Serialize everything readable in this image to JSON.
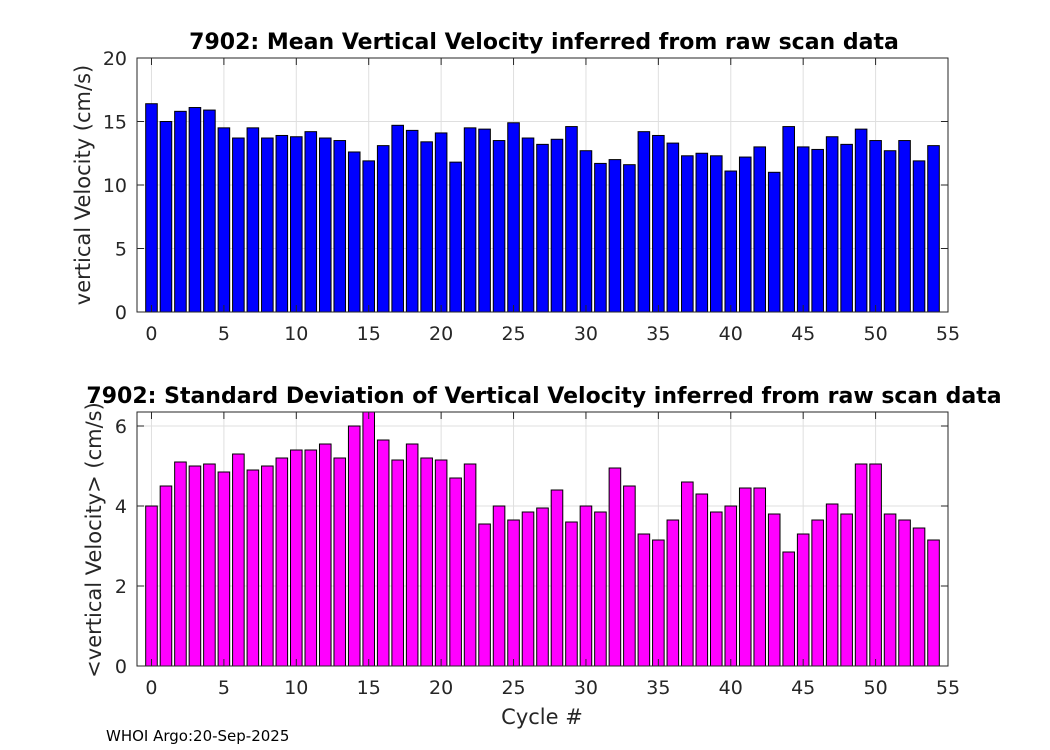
{
  "chart_data": [
    {
      "type": "bar",
      "title": "7902: Mean Vertical Velocity inferred from raw scan data",
      "xlabel": "",
      "ylabel": "vertical Velocity (cm/s)",
      "xlim": [
        -1,
        55
      ],
      "ylim": [
        0,
        20
      ],
      "xticks": [
        0,
        5,
        10,
        15,
        20,
        25,
        30,
        35,
        40,
        45,
        50,
        55
      ],
      "yticks": [
        0,
        5,
        10,
        15,
        20
      ],
      "grid": true,
      "bar_color": "#0000ff",
      "x": [
        0,
        1,
        2,
        3,
        4,
        5,
        6,
        7,
        8,
        9,
        10,
        11,
        12,
        13,
        14,
        15,
        16,
        17,
        18,
        19,
        20,
        21,
        22,
        23,
        24,
        25,
        26,
        27,
        28,
        29,
        30,
        31,
        32,
        33,
        34,
        35,
        36,
        37,
        38,
        39,
        40,
        41,
        42,
        43,
        44,
        45,
        46,
        47,
        48,
        49,
        50,
        51,
        52,
        53,
        54
      ],
      "values": [
        16.4,
        15.0,
        15.8,
        16.1,
        15.9,
        14.5,
        13.7,
        14.5,
        13.7,
        13.9,
        13.8,
        14.2,
        13.7,
        13.5,
        12.6,
        11.9,
        13.1,
        14.7,
        14.3,
        13.4,
        14.1,
        11.8,
        14.5,
        14.4,
        13.5,
        14.9,
        13.7,
        13.2,
        13.6,
        14.6,
        12.7,
        11.7,
        12.0,
        11.6,
        14.2,
        13.9,
        13.3,
        12.3,
        12.5,
        12.3,
        11.1,
        12.2,
        13.0,
        11.0,
        14.6,
        13.0,
        12.8,
        13.8,
        13.2,
        14.4,
        13.5,
        12.7,
        13.5,
        11.9,
        13.1
      ]
    },
    {
      "type": "bar",
      "title": "7902: Standard Deviation of Vertical Velocity inferred from raw scan data",
      "xlabel": "Cycle #",
      "ylabel": "<vertical Velocity> (cm/s)",
      "xlim": [
        -1,
        55
      ],
      "ylim": [
        0,
        6.35
      ],
      "xticks": [
        0,
        5,
        10,
        15,
        20,
        25,
        30,
        35,
        40,
        45,
        50,
        55
      ],
      "yticks": [
        0,
        2,
        4,
        6
      ],
      "grid": true,
      "bar_color": "#ff00ff",
      "x": [
        0,
        1,
        2,
        3,
        4,
        5,
        6,
        7,
        8,
        9,
        10,
        11,
        12,
        13,
        14,
        15,
        16,
        17,
        18,
        19,
        20,
        21,
        22,
        23,
        24,
        25,
        26,
        27,
        28,
        29,
        30,
        31,
        32,
        33,
        34,
        35,
        36,
        37,
        38,
        39,
        40,
        41,
        42,
        43,
        44,
        45,
        46,
        47,
        48,
        49,
        50,
        51,
        52,
        53,
        54
      ],
      "values": [
        4.0,
        4.5,
        5.1,
        5.0,
        5.05,
        4.85,
        5.3,
        4.9,
        5.0,
        5.2,
        5.4,
        5.4,
        5.55,
        5.2,
        6.0,
        6.35,
        5.65,
        5.15,
        5.55,
        5.2,
        5.15,
        4.7,
        5.05,
        3.55,
        4.0,
        3.65,
        3.85,
        3.95,
        4.4,
        3.6,
        4.0,
        3.85,
        4.95,
        4.5,
        3.3,
        3.15,
        3.65,
        4.6,
        4.3,
        3.85,
        4.0,
        4.45,
        4.45,
        3.8,
        2.85,
        3.3,
        3.65,
        4.05,
        3.8,
        5.05,
        5.05,
        3.8,
        3.65,
        3.45,
        3.15
      ]
    }
  ],
  "footer": "WHOI Argo:20-Sep-2025"
}
